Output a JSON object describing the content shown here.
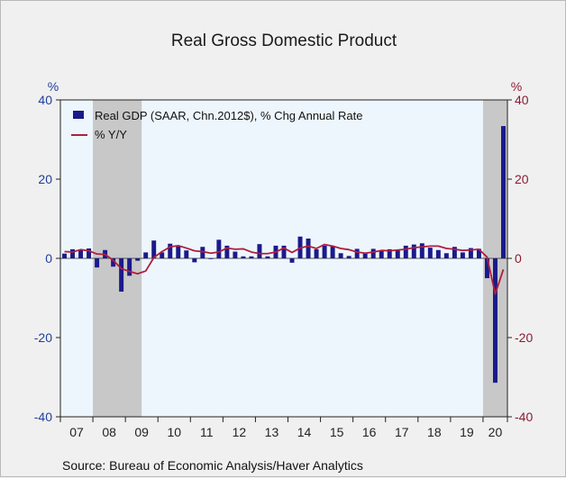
{
  "chart_data": {
    "type": "bar+line",
    "title": "Real Gross Domestic Product",
    "source": "Source:  Bureau of Economic Analysis/Haver Analytics",
    "y_left": {
      "unit": "%",
      "ylim": [
        -40,
        40
      ],
      "ticks": [
        "40",
        "20",
        "0",
        "-20",
        "-40"
      ]
    },
    "y_right": {
      "unit": "%",
      "ylim": [
        -40,
        40
      ],
      "ticks": [
        "40",
        "20",
        "0",
        "-20",
        "-40"
      ]
    },
    "x_year_labels": [
      "07",
      "08",
      "09",
      "10",
      "11",
      "12",
      "13",
      "14",
      "15",
      "16",
      "17",
      "18",
      "19",
      "20"
    ],
    "recessions": [
      {
        "start": "2008Q1",
        "end": "2009Q2"
      },
      {
        "start": "2020Q1",
        "end": "2020Q3"
      }
    ],
    "quarters": [
      "2007Q1",
      "2007Q2",
      "2007Q3",
      "2007Q4",
      "2008Q1",
      "2008Q2",
      "2008Q3",
      "2008Q4",
      "2009Q1",
      "2009Q2",
      "2009Q3",
      "2009Q4",
      "2010Q1",
      "2010Q2",
      "2010Q3",
      "2010Q4",
      "2011Q1",
      "2011Q2",
      "2011Q3",
      "2011Q4",
      "2012Q1",
      "2012Q2",
      "2012Q3",
      "2012Q4",
      "2013Q1",
      "2013Q2",
      "2013Q3",
      "2013Q4",
      "2014Q1",
      "2014Q2",
      "2014Q3",
      "2014Q4",
      "2015Q1",
      "2015Q2",
      "2015Q3",
      "2015Q4",
      "2016Q1",
      "2016Q2",
      "2016Q3",
      "2016Q4",
      "2017Q1",
      "2017Q2",
      "2017Q3",
      "2017Q4",
      "2018Q1",
      "2018Q2",
      "2018Q3",
      "2018Q4",
      "2019Q1",
      "2019Q2",
      "2019Q3",
      "2019Q4",
      "2020Q1",
      "2020Q2",
      "2020Q3"
    ],
    "series": [
      {
        "name": "Real GDP (SAAR, Chn.2012$), % Chg Annual Rate",
        "kind": "bar",
        "color": "#1a1a8c",
        "values": [
          1.2,
          2.3,
          2.2,
          2.5,
          -2.3,
          2.1,
          -2.1,
          -8.4,
          -4.4,
          -0.6,
          1.5,
          4.5,
          1.5,
          3.7,
          3.0,
          2.0,
          -1.0,
          2.9,
          -0.1,
          4.7,
          3.2,
          1.7,
          0.5,
          0.5,
          3.6,
          0.5,
          3.2,
          3.2,
          -1.1,
          5.5,
          5.0,
          2.3,
          3.2,
          3.0,
          1.3,
          0.6,
          2.4,
          1.2,
          2.4,
          2.0,
          2.3,
          2.2,
          3.2,
          3.5,
          3.8,
          2.7,
          2.1,
          1.3,
          2.9,
          1.5,
          2.6,
          2.4,
          -5.0,
          -31.4,
          33.4
        ]
      },
      {
        "name": "% Y/Y",
        "kind": "line",
        "color": "#b01e3c",
        "values": [
          1.7,
          1.6,
          2.2,
          1.9,
          1.1,
          1.0,
          -0.5,
          -2.6,
          -3.3,
          -3.9,
          -3.2,
          0.2,
          1.7,
          2.9,
          3.2,
          2.6,
          1.9,
          1.7,
          1.3,
          1.6,
          2.6,
          2.3,
          2.4,
          1.6,
          1.2,
          1.2,
          1.6,
          2.6,
          1.5,
          2.6,
          3.1,
          2.5,
          3.5,
          3.1,
          2.5,
          2.2,
          1.6,
          1.3,
          1.6,
          2.0,
          1.9,
          2.1,
          2.3,
          2.7,
          2.9,
          3.1,
          3.1,
          2.5,
          2.3,
          2.0,
          2.1,
          2.3,
          0.3,
          -9.0,
          -2.8
        ]
      }
    ]
  }
}
